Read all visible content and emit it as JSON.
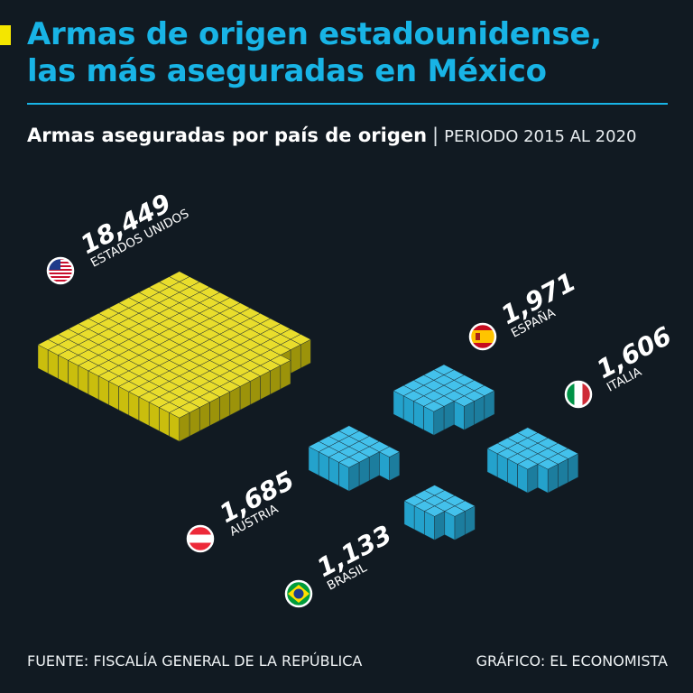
{
  "header": {
    "title_line1": "Armas de origen estadounidense,",
    "title_line2": "las más aseguradas en México",
    "subtitle": "Armas aseguradas por país de origen",
    "separator": "|",
    "period": "PERIODO 2015 AL 2020"
  },
  "chart_data": {
    "type": "isometric-block-pictogram",
    "title": "Armas aseguradas por país de origen",
    "subtitle": "PERIODO 2015 AL 2020",
    "categories": [
      "ESTADOS UNIDOS",
      "ESPAÑA",
      "ITALIA",
      "AUSTRIA",
      "BRASIL"
    ],
    "values": [
      18449,
      1971,
      1606,
      1685,
      1133
    ],
    "value_labels": [
      "18,449",
      "1,971",
      "1,606",
      "1,685",
      "1,133"
    ],
    "flags": [
      "us-flag-icon",
      "spain-flag-icon",
      "italy-flag-icon",
      "austria-flag-icon",
      "brazil-flag-icon"
    ],
    "colors": {
      "highlight": "#e6d80f",
      "others": "#29b8e8"
    },
    "units_per_block": 100
  },
  "footer": {
    "source": "FUENTE: FISCALÍA GENERAL DE LA REPÚBLICA",
    "credit": "GRÁFICO: EL ECONOMISTA"
  }
}
